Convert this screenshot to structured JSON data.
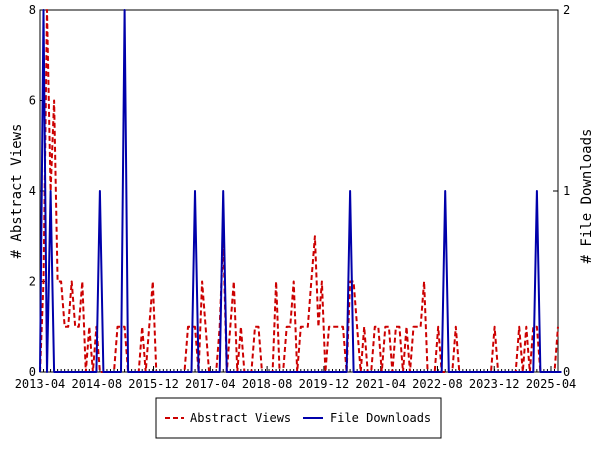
{
  "chart_data": {
    "type": "line",
    "title": "",
    "xlabel": "",
    "ylabel_left": "# Abstract Views",
    "ylabel_right": "# File Downloads",
    "x_ticks": [
      "2013-04",
      "2014-08",
      "2015-12",
      "2017-04",
      "2018-08",
      "2019-12",
      "2021-04",
      "2022-08",
      "2023-12",
      "2025-04"
    ],
    "y_left_ticks": [
      "0",
      "2",
      "4",
      "6",
      "8"
    ],
    "y_right_ticks": [
      "0",
      "1",
      "2"
    ],
    "y_left_range": [
      0,
      8
    ],
    "y_right_range": [
      0,
      2
    ],
    "x_range_months": [
      0,
      148
    ],
    "legend_position": "bottom",
    "grid": false,
    "colors": {
      "abstract_views": "#cc0000",
      "file_downloads": "#0000aa"
    },
    "series": [
      {
        "name": "Abstract Views",
        "axis": "left",
        "style": "dashed",
        "values": [
          0,
          2,
          8,
          4,
          6,
          2,
          2,
          1,
          1,
          2,
          1,
          1,
          2,
          0,
          1,
          0,
          1,
          0,
          0,
          0,
          0,
          0,
          1,
          1,
          1,
          0,
          0,
          0,
          0,
          1,
          0,
          1,
          2,
          0,
          0,
          0,
          0,
          0,
          0,
          0,
          0,
          0,
          1,
          1,
          1,
          0,
          2,
          1,
          0,
          0,
          0,
          1,
          3,
          0,
          1,
          2,
          0,
          1,
          0,
          0,
          0,
          1,
          1,
          0,
          0,
          0,
          0,
          2,
          0,
          0,
          1,
          1,
          2,
          0,
          1,
          1,
          1,
          2,
          3,
          1,
          2,
          0,
          1,
          1,
          1,
          1,
          1,
          0,
          2,
          2,
          1,
          0,
          1,
          0,
          0,
          1,
          1,
          0,
          1,
          1,
          0,
          1,
          1,
          0,
          1,
          0,
          1,
          1,
          1,
          2,
          0,
          0,
          0,
          1,
          0,
          0,
          0,
          0,
          1,
          0,
          0,
          0,
          0,
          0,
          0,
          0,
          0,
          0,
          0,
          1,
          0,
          0,
          0,
          0,
          0,
          0,
          1,
          0,
          1,
          0,
          1,
          1,
          0,
          0,
          0,
          0,
          0,
          1
        ]
      },
      {
        "name": "File Downloads",
        "axis": "right",
        "style": "solid",
        "values": [
          0,
          2,
          0,
          1,
          0,
          0,
          0,
          0,
          0,
          0,
          0,
          0,
          0,
          0,
          0,
          0,
          0,
          1,
          0,
          0,
          0,
          0,
          0,
          0,
          2,
          0,
          0,
          0,
          0,
          0,
          0,
          0,
          0,
          0,
          0,
          0,
          0,
          0,
          0,
          0,
          0,
          0,
          0,
          0,
          1,
          0,
          0,
          0,
          0,
          0,
          0,
          0,
          1,
          0,
          0,
          0,
          0,
          0,
          0,
          0,
          0,
          0,
          0,
          0,
          0,
          0,
          0,
          0,
          0,
          0,
          0,
          0,
          0,
          0,
          0,
          0,
          0,
          0,
          0,
          0,
          0,
          0,
          0,
          0,
          0,
          0,
          0,
          0,
          1,
          0,
          0,
          0,
          0,
          0,
          0,
          0,
          0,
          0,
          0,
          0,
          0,
          0,
          0,
          0,
          0,
          0,
          0,
          0,
          0,
          0,
          0,
          0,
          0,
          0,
          0,
          1,
          0,
          0,
          0,
          0,
          0,
          0,
          0,
          0,
          0,
          0,
          0,
          0,
          0,
          0,
          0,
          0,
          0,
          0,
          0,
          0,
          0,
          0,
          0,
          0,
          0,
          1,
          0,
          0,
          0,
          0,
          0,
          0,
          0
        ]
      }
    ]
  }
}
